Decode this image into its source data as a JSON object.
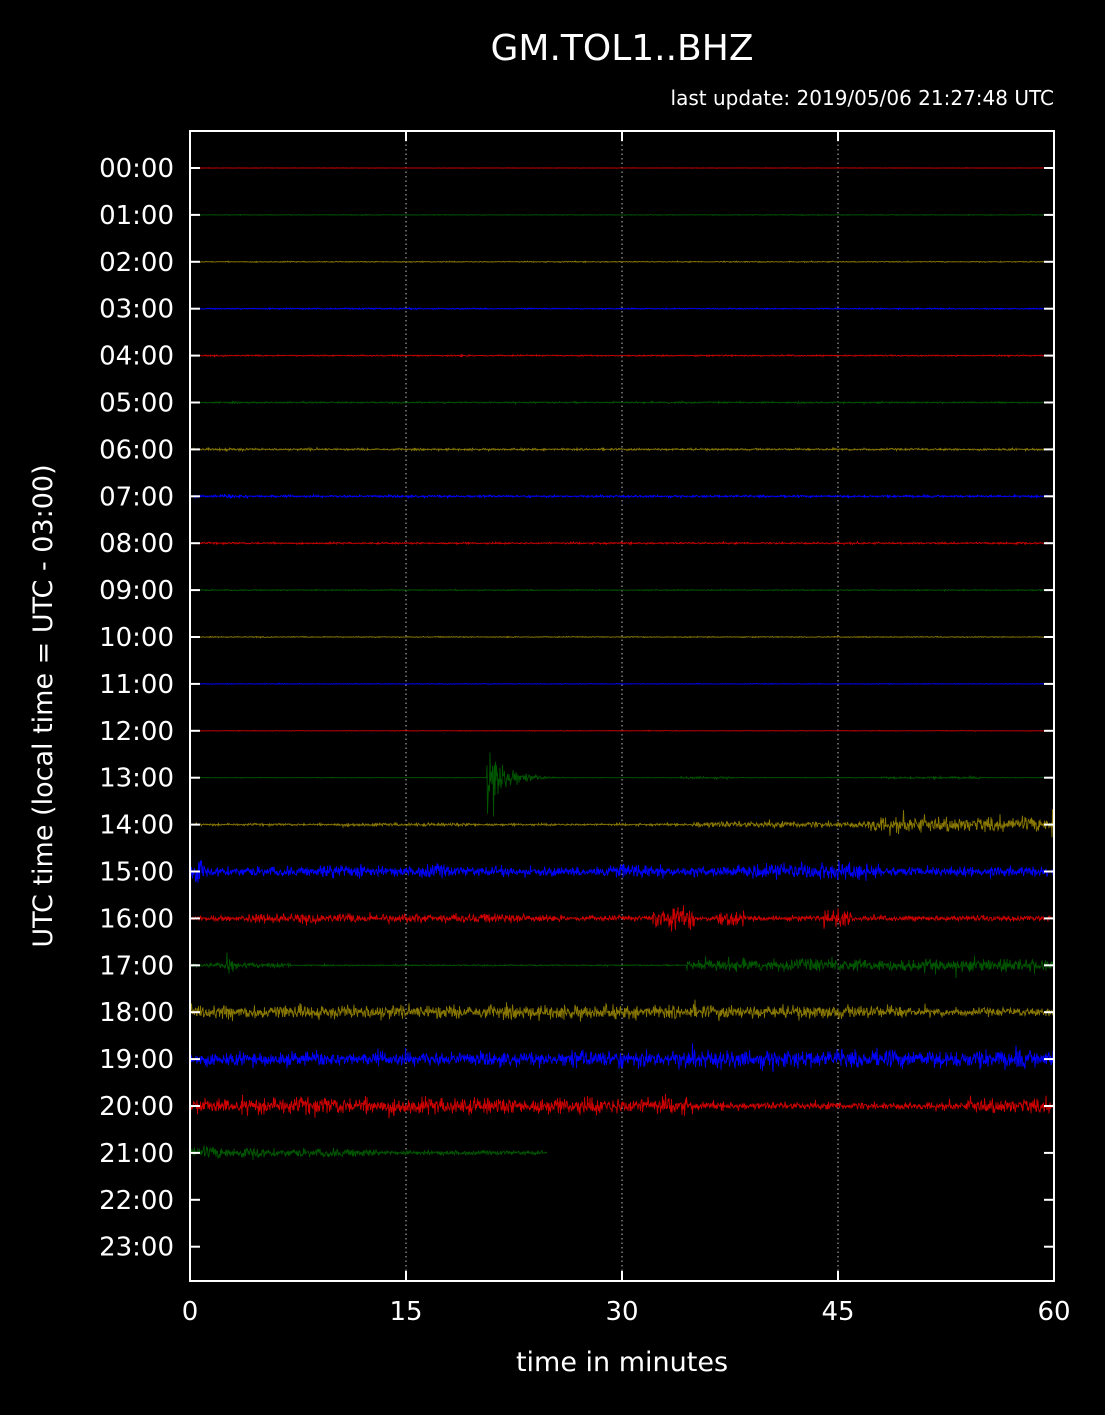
{
  "chart_data": {
    "type": "line",
    "title": "GM.TOL1..BHZ",
    "subtitle": "last update: 2019/05/06 21:27:48 UTC",
    "xlabel": "time in minutes",
    "ylabel": "UTC time (local time = UTC - 03:00)",
    "xlim": [
      0,
      60
    ],
    "x_ticks": [
      "0",
      "15",
      "30",
      "45",
      "60"
    ],
    "y_ticks": [
      "00:00",
      "01:00",
      "02:00",
      "03:00",
      "04:00",
      "05:00",
      "06:00",
      "07:00",
      "08:00",
      "09:00",
      "10:00",
      "11:00",
      "12:00",
      "13:00",
      "14:00",
      "15:00",
      "16:00",
      "17:00",
      "18:00",
      "19:00",
      "20:00",
      "21:00",
      "22:00",
      "23:00"
    ],
    "grid": "vertical dotted at 15, 30, 45",
    "background": "#000000",
    "colors": [
      "#cc0000",
      "#005500",
      "#887700",
      "#0000ff"
    ],
    "series": [
      {
        "hour": "00:00",
        "color": "#cc0000",
        "end_minute": 60,
        "base_amplitude": 0.3,
        "segments": [
          [
            0,
            60,
            0.4
          ]
        ]
      },
      {
        "hour": "01:00",
        "color": "#005500",
        "end_minute": 60,
        "base_amplitude": 0.7,
        "segments": [
          [
            40,
            44,
            1.0
          ]
        ]
      },
      {
        "hour": "02:00",
        "color": "#887700",
        "end_minute": 60,
        "base_amplitude": 0.9,
        "segments": [
          [
            37,
            40,
            1.1
          ]
        ]
      },
      {
        "hour": "03:00",
        "color": "#0000ff",
        "end_minute": 60,
        "base_amplitude": 1.1,
        "segments": [
          [
            11,
            16,
            1.4
          ]
        ]
      },
      {
        "hour": "04:00",
        "color": "#cc0000",
        "end_minute": 60,
        "base_amplitude": 1.2,
        "segments": [
          [
            17,
            19,
            1.6
          ]
        ]
      },
      {
        "hour": "05:00",
        "color": "#005500",
        "end_minute": 60,
        "base_amplitude": 1.4,
        "segments": [
          [
            33,
            35,
            2.2
          ],
          [
            42,
            43,
            2.5
          ]
        ]
      },
      {
        "hour": "06:00",
        "color": "#887700",
        "end_minute": 60,
        "base_amplitude": 1.9,
        "segments": [
          [
            2,
            4,
            2.6
          ],
          [
            8,
            9,
            2.4
          ]
        ]
      },
      {
        "hour": "07:00",
        "color": "#0000ff",
        "end_minute": 60,
        "base_amplitude": 2.0,
        "segments": [
          [
            2,
            4,
            3.2
          ]
        ]
      },
      {
        "hour": "08:00",
        "color": "#cc0000",
        "end_minute": 60,
        "base_amplitude": 1.6,
        "segments": [
          [
            56,
            58,
            2.6
          ]
        ]
      },
      {
        "hour": "09:00",
        "color": "#005500",
        "end_minute": 60,
        "base_amplitude": 1.1,
        "segments": []
      },
      {
        "hour": "10:00",
        "color": "#887700",
        "end_minute": 60,
        "base_amplitude": 0.9,
        "segments": []
      },
      {
        "hour": "11:00",
        "color": "#0000ff",
        "end_minute": 60,
        "base_amplitude": 0.6,
        "segments": []
      },
      {
        "hour": "12:00",
        "color": "#cc0000",
        "end_minute": 60,
        "base_amplitude": 0.5,
        "segments": []
      },
      {
        "hour": "13:00",
        "color": "#005500",
        "end_minute": 60,
        "base_amplitude": 0.5,
        "segments": [
          [
            34,
            38,
            2.0
          ],
          [
            48,
            55,
            2.0
          ]
        ],
        "event": {
          "minute": 20.6,
          "amplitude": 80,
          "decay": 1.2
        }
      },
      {
        "hour": "14:00",
        "color": "#887700",
        "end_minute": 60,
        "base_amplitude": 2.0,
        "segments": [
          [
            10,
            20,
            3.0
          ],
          [
            35,
            47,
            6.0
          ],
          [
            47,
            60,
            14.0
          ]
        ],
        "event": {
          "minute": 59.8,
          "amplitude": 60,
          "decay": 0.3
        }
      },
      {
        "hour": "15:00",
        "color": "#0000ff",
        "end_minute": 60,
        "base_amplitude": 9.0,
        "segments": [
          [
            0,
            1,
            30
          ],
          [
            9,
            12,
            14
          ],
          [
            16,
            18,
            14
          ],
          [
            28,
            33,
            14
          ],
          [
            38,
            48,
            16
          ]
        ]
      },
      {
        "hour": "16:00",
        "color": "#cc0000",
        "end_minute": 60,
        "base_amplitude": 5.0,
        "segments": [
          [
            4,
            25,
            9
          ],
          [
            32,
            35,
            22
          ],
          [
            36.5,
            38.5,
            14
          ],
          [
            44,
            46,
            18
          ]
        ]
      },
      {
        "hour": "17:00",
        "color": "#005500",
        "end_minute": 60,
        "base_amplitude": 1.2,
        "segments": [
          [
            0,
            7,
            5
          ],
          [
            2.5,
            3,
            18
          ],
          [
            34.5,
            60,
            12
          ]
        ]
      },
      {
        "hour": "18:00",
        "color": "#887700",
        "end_minute": 60,
        "base_amplitude": 8.0,
        "segments": [
          [
            0,
            50,
            13
          ],
          [
            50,
            53,
            1.5
          ],
          [
            53,
            60,
            8
          ]
        ]
      },
      {
        "hour": "19:00",
        "color": "#0000ff",
        "end_minute": 60,
        "base_amplitude": 11.0,
        "segments": [
          [
            0,
            26,
            13
          ],
          [
            26,
            60,
            17
          ]
        ]
      },
      {
        "hour": "20:00",
        "color": "#cc0000",
        "end_minute": 60,
        "base_amplitude": 7.0,
        "segments": [
          [
            0,
            35,
            16
          ],
          [
            35,
            43,
            6
          ],
          [
            43,
            47,
            1.2
          ],
          [
            47,
            54,
            6
          ],
          [
            54,
            60,
            14
          ]
        ]
      },
      {
        "hour": "21:00",
        "color": "#005500",
        "end_minute": 24.8,
        "base_amplitude": 4.0,
        "segments": [
          [
            0,
            5,
            12
          ],
          [
            5,
            13,
            8
          ],
          [
            13,
            24.8,
            2
          ]
        ]
      }
    ]
  }
}
